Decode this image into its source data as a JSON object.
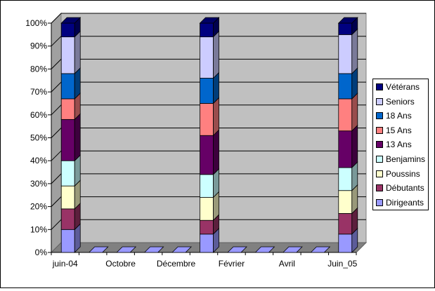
{
  "chart_data": {
    "type": "bar",
    "stacked": true,
    "percent_stacked": true,
    "categories": [
      "juin-04",
      "",
      "Octobre",
      "",
      "Décembre",
      "",
      "Février",
      "",
      "Avril",
      "",
      "Juin_05"
    ],
    "visible_tick_labels": [
      "juin-04",
      "Octobre",
      "Décembre",
      "Février",
      "Avril",
      "Juin_05"
    ],
    "y_ticks": [
      "0%",
      "10%",
      "20%",
      "30%",
      "40%",
      "50%",
      "60%",
      "70%",
      "80%",
      "90%",
      "100%"
    ],
    "ylim": [
      0,
      100
    ],
    "grid": true,
    "legend_position": "right",
    "series": [
      {
        "name": "Dirigeants",
        "color": "#9999ff",
        "values": [
          10,
          0,
          0,
          0,
          0,
          8,
          0,
          0,
          0,
          0,
          8
        ]
      },
      {
        "name": "Débutants",
        "color": "#993366",
        "values": [
          9,
          0,
          0,
          0,
          0,
          6,
          0,
          0,
          0,
          0,
          9
        ]
      },
      {
        "name": "Poussins",
        "color": "#ffffcc",
        "values": [
          10,
          0,
          0,
          0,
          0,
          10,
          0,
          0,
          0,
          0,
          10
        ]
      },
      {
        "name": "Benjamins",
        "color": "#ccffff",
        "values": [
          11,
          0,
          0,
          0,
          0,
          10,
          0,
          0,
          0,
          0,
          10
        ]
      },
      {
        "name": "13 Ans",
        "color": "#660066",
        "values": [
          18,
          0,
          0,
          0,
          0,
          17,
          0,
          0,
          0,
          0,
          16
        ]
      },
      {
        "name": "15 Ans",
        "color": "#ff8080",
        "values": [
          9,
          0,
          0,
          0,
          0,
          14,
          0,
          0,
          0,
          0,
          14
        ]
      },
      {
        "name": "18 Ans",
        "color": "#0066cc",
        "values": [
          11,
          0,
          0,
          0,
          0,
          11,
          0,
          0,
          0,
          0,
          11
        ]
      },
      {
        "name": "Seniors",
        "color": "#ccccff",
        "values": [
          16,
          0,
          0,
          0,
          0,
          18,
          0,
          0,
          0,
          0,
          17
        ]
      },
      {
        "name": "Vétérans",
        "color": "#000080",
        "values": [
          6,
          0,
          0,
          0,
          0,
          6,
          0,
          0,
          0,
          0,
          5
        ]
      }
    ]
  }
}
